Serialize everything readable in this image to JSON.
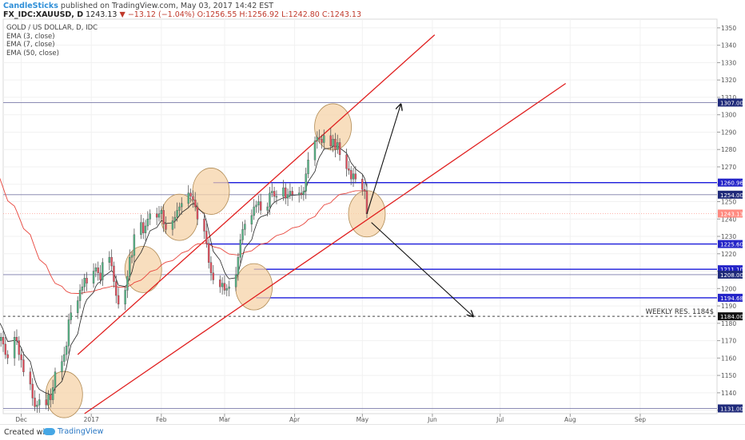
{
  "header": {
    "publisher": "CandleSticks",
    "published_text": "published on TradingView.com, May 03, 2017 14:42 EST",
    "symbol": "FX_IDC:XAUUSD, D",
    "last": "1243.13",
    "change": "−13.12 (−1.04%)",
    "open": "O:1256.55",
    "high": "H:1256.92",
    "low": "L:1242.80",
    "close": "C:1243.13"
  },
  "legend": {
    "title": "GOLD / US DOLLAR, D, IDC",
    "lines": [
      "EMA (3, close)",
      "EMA (7, close)",
      "EMA (50, close)"
    ]
  },
  "footer": {
    "created": "Created with",
    "brand": "TradingView"
  },
  "colors": {
    "up": "#53b987",
    "down": "#eb4d5c",
    "wick": "#555555",
    "ema_short": "#222222",
    "ema_long": "#e8453c",
    "channel": "#e01f1f",
    "support": "#1a1adb",
    "horizontal": "#7a7aa8",
    "highlight": "#f6d3a8",
    "highlight_stroke": "#b08a52",
    "price_tag": "#1f2a7a",
    "last_price": "#ff8a80"
  },
  "chart_data": {
    "type": "candlestick",
    "title": "GOLD / US DOLLAR, D, IDC",
    "xlabel": "",
    "ylabel": "",
    "ylim": [
      1128,
      1355
    ],
    "y_ticks": [
      1130,
      1140,
      1150,
      1160,
      1170,
      1180,
      1190,
      1200,
      1210,
      1220,
      1230,
      1240,
      1250,
      1260,
      1270,
      1280,
      1290,
      1300,
      1310,
      1320,
      1330,
      1340,
      1350
    ],
    "x_range": [
      "2016-11-23",
      "2017-10-05"
    ],
    "x_ticks": [
      {
        "date": "2016-12-01",
        "label": "Dec"
      },
      {
        "date": "2017-01-01",
        "label": "2017"
      },
      {
        "date": "2017-02-01",
        "label": "Feb"
      },
      {
        "date": "2017-03-01",
        "label": "Mar"
      },
      {
        "date": "2017-04-01",
        "label": "Apr"
      },
      {
        "date": "2017-05-01",
        "label": "May"
      },
      {
        "date": "2017-06-01",
        "label": "Jun"
      },
      {
        "date": "2017-07-01",
        "label": "Jul"
      },
      {
        "date": "2017-08-01",
        "label": "Aug"
      },
      {
        "date": "2017-09-01",
        "label": "Sep"
      }
    ],
    "closes": [
      1214,
      1208,
      1188,
      1184,
      1176,
      1184,
      1178,
      1175,
      1170,
      1172,
      1168,
      1162,
      1160,
      1172,
      1170,
      1162,
      1159,
      1152,
      1145,
      1137,
      1132,
      1133,
      1136,
      1133,
      1139,
      1136,
      1143,
      1152,
      1158,
      1162,
      1167,
      1182,
      1186,
      1193,
      1199,
      1201,
      1206,
      1203,
      1210,
      1212,
      1209,
      1205,
      1215,
      1218,
      1213,
      1204,
      1196,
      1191,
      1199,
      1207,
      1218,
      1219,
      1231,
      1238,
      1232,
      1236,
      1240,
      1243,
      1241,
      1243,
      1245,
      1237,
      1234,
      1239,
      1241,
      1245,
      1247,
      1249,
      1255,
      1253,
      1251,
      1247,
      1240,
      1233,
      1226,
      1215,
      1209,
      1205,
      1201,
      1203,
      1199,
      1200,
      1201,
      1208,
      1218,
      1228,
      1234,
      1237,
      1242,
      1247,
      1248,
      1250,
      1245,
      1247,
      1255,
      1256,
      1253,
      1253,
      1258,
      1252,
      1254,
      1256,
      1254,
      1255,
      1254,
      1256,
      1266,
      1274,
      1285,
      1287,
      1286,
      1284,
      1288,
      1282,
      1286,
      1280,
      1284,
      1277,
      1269,
      1268,
      1263,
      1266,
      1263,
      1257,
      1256,
      1243
    ],
    "last_close": 1243.13,
    "ema_short_label": "EMA (7, close)",
    "ema_long_label": "EMA (50, close)",
    "price_levels": [
      {
        "label": "1307.00",
        "value": 1307,
        "kind": "horizontal"
      },
      {
        "label": "1260.96",
        "value": 1260.96,
        "kind": "support",
        "from": "2017-02-24"
      },
      {
        "label": "1254.00",
        "value": 1254,
        "kind": "horizontal"
      },
      {
        "label": "1225.60",
        "value": 1225.6,
        "kind": "support",
        "from": "2017-02-21"
      },
      {
        "label": "1211.10",
        "value": 1211.1,
        "kind": "support",
        "from": "2017-03-14"
      },
      {
        "label": "1208.00",
        "value": 1208,
        "kind": "horizontal"
      },
      {
        "label": "1194.68",
        "value": 1194.68,
        "kind": "support",
        "from": "2017-03-15"
      },
      {
        "label": "1184.00",
        "value": 1184,
        "kind": "dashed"
      },
      {
        "label": "1131.00",
        "value": 1131,
        "kind": "horizontal"
      }
    ],
    "annotation": {
      "text": "WEEKLY RES. 1184$",
      "value": 1184
    },
    "channel_lines": [
      {
        "from": {
          "date": "2016-12-26",
          "value": 1162
        },
        "to": {
          "date": "2017-06-02",
          "value": 1346
        }
      },
      {
        "from": {
          "date": "2016-12-29",
          "value": 1128
        },
        "to": {
          "date": "2017-07-30",
          "value": 1318
        }
      }
    ],
    "projection_arrows": [
      {
        "from": {
          "date": "2017-05-03",
          "value": 1243
        },
        "to": {
          "date": "2017-05-18",
          "value": 1306
        }
      },
      {
        "from": {
          "date": "2017-05-05",
          "value": 1238
        },
        "to": {
          "date": "2017-06-19",
          "value": 1184
        }
      }
    ],
    "highlight_circles": [
      {
        "date": "2016-12-20",
        "value": 1139
      },
      {
        "date": "2017-01-24",
        "value": 1211
      },
      {
        "date": "2017-02-09",
        "value": 1241
      },
      {
        "date": "2017-02-23",
        "value": 1256
      },
      {
        "date": "2017-03-14",
        "value": 1201
      },
      {
        "date": "2017-04-18",
        "value": 1293
      },
      {
        "date": "2017-05-03",
        "value": 1243
      }
    ]
  }
}
